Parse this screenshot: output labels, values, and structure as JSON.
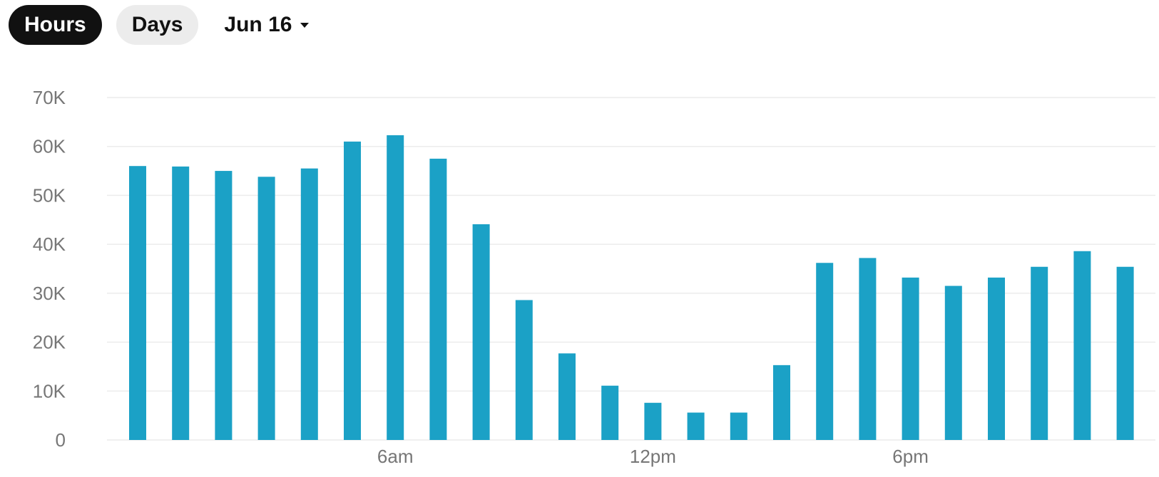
{
  "controls": {
    "hours_label": "Hours",
    "days_label": "Days",
    "date_label": "Jun 16"
  },
  "colors": {
    "bar": "#1ba1c6",
    "grid": "#ececec",
    "tick_text": "#767676",
    "active_toggle": "#111111",
    "inactive_toggle": "#ececec"
  },
  "chart_data": {
    "type": "bar",
    "title": "",
    "xlabel": "",
    "ylabel": "",
    "ylim": [
      0,
      70000
    ],
    "yticks": [
      0,
      10000,
      20000,
      30000,
      40000,
      50000,
      60000,
      70000
    ],
    "ytick_labels": [
      "0",
      "10K",
      "20K",
      "30K",
      "40K",
      "50K",
      "60K",
      "70K"
    ],
    "categories": [
      "0",
      "1",
      "2",
      "3",
      "4",
      "5",
      "6",
      "7",
      "8",
      "9",
      "10",
      "11",
      "12",
      "13",
      "14",
      "15",
      "16",
      "17",
      "18",
      "19",
      "20",
      "21",
      "22",
      "23"
    ],
    "x_tick_labels": [
      {
        "index": 6,
        "label": "6am"
      },
      {
        "index": 12,
        "label": "12pm"
      },
      {
        "index": 18,
        "label": "6pm"
      }
    ],
    "values": [
      56000,
      55900,
      55000,
      53800,
      55500,
      61000,
      62300,
      57500,
      44100,
      28600,
      17700,
      11100,
      7600,
      5600,
      5600,
      15300,
      36200,
      37200,
      33200,
      31500,
      33200,
      35400,
      38600,
      35400
    ],
    "grid": true,
    "legend": "none"
  }
}
